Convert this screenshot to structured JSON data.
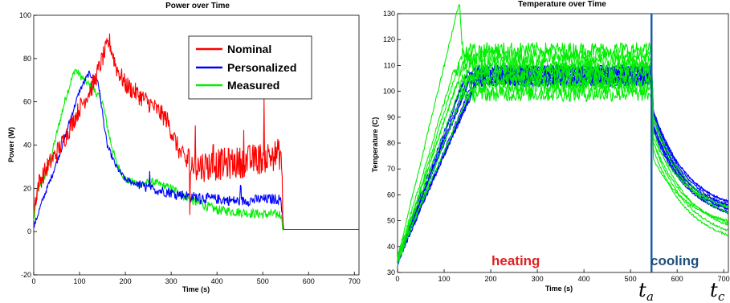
{
  "colors": {
    "nominal": "#ff0000",
    "personalized": "#0000ff",
    "measured": "#00ee00",
    "marker": "#1f5fa8",
    "heating": "#e02020",
    "cooling": "#1f4e79"
  },
  "chart_data": [
    {
      "type": "line",
      "title": "Power over Time",
      "xlabel": "Time (s)",
      "ylabel": "Power (W)",
      "xlim": [
        0,
        710
      ],
      "ylim": [
        -20,
        100
      ],
      "xticks": [
        0,
        100,
        200,
        300,
        400,
        500,
        600,
        700
      ],
      "yticks": [
        -20,
        0,
        20,
        40,
        60,
        80,
        100
      ],
      "grid": false,
      "legend_position": "top-right",
      "series": [
        {
          "name": "Nominal",
          "color": "#ff0000",
          "x": [
            0,
            10,
            30,
            60,
            100,
            130,
            150,
            165,
            180,
            200,
            230,
            260,
            290,
            320,
            350,
            400,
            450,
            500,
            540,
            545,
            550,
            710
          ],
          "y": [
            10,
            22,
            30,
            40,
            57,
            68,
            80,
            88,
            76,
            68,
            63,
            58,
            52,
            36,
            30,
            31,
            32,
            34,
            36,
            1,
            1,
            1
          ]
        },
        {
          "name": "Personalized",
          "color": "#0000ff",
          "x": [
            0,
            20,
            40,
            60,
            80,
            100,
            120,
            140,
            160,
            180,
            200,
            250,
            300,
            350,
            400,
            450,
            500,
            540,
            545,
            550,
            710
          ],
          "y": [
            2,
            15,
            26,
            38,
            52,
            65,
            73,
            70,
            40,
            30,
            24,
            20,
            18,
            16,
            15,
            14,
            15,
            15,
            1,
            1,
            1
          ]
        },
        {
          "name": "Measured",
          "color": "#00ee00",
          "x": [
            0,
            10,
            30,
            50,
            70,
            90,
            110,
            130,
            150,
            165,
            180,
            200,
            230,
            260,
            300,
            350,
            400,
            450,
            500,
            540,
            545,
            550,
            710
          ],
          "y": [
            5,
            20,
            28,
            45,
            62,
            75,
            70,
            66,
            60,
            44,
            32,
            24,
            22,
            23,
            20,
            14,
            10,
            9,
            8,
            8,
            1,
            1,
            1
          ]
        }
      ]
    },
    {
      "type": "line",
      "title": "Temperature over Time",
      "xlabel": "Time (s)",
      "ylabel": "Temperature (C)",
      "xlim": [
        0,
        710
      ],
      "ylim": [
        30,
        130
      ],
      "xticks": [
        0,
        100,
        200,
        300,
        400,
        500,
        600,
        700
      ],
      "yticks": [
        30,
        40,
        50,
        60,
        70,
        80,
        90,
        100,
        110,
        120,
        130
      ],
      "grid": false,
      "annotations": {
        "heating_label": "heating",
        "cooling_label": "cooling",
        "marker_x": 545,
        "ta_symbol": "t",
        "ta_subscript": "a",
        "tc_symbol": "t",
        "tc_subscript": "c"
      },
      "series_groups": [
        {
          "color": "#0000ff",
          "count": 10,
          "heat_peak": [
            103,
            109
          ],
          "cool_end": [
            48,
            53
          ]
        },
        {
          "color": "#00ee00",
          "count": 8,
          "heat_peak": [
            99,
            116
          ],
          "cool_end": [
            40,
            52
          ]
        }
      ]
    }
  ]
}
